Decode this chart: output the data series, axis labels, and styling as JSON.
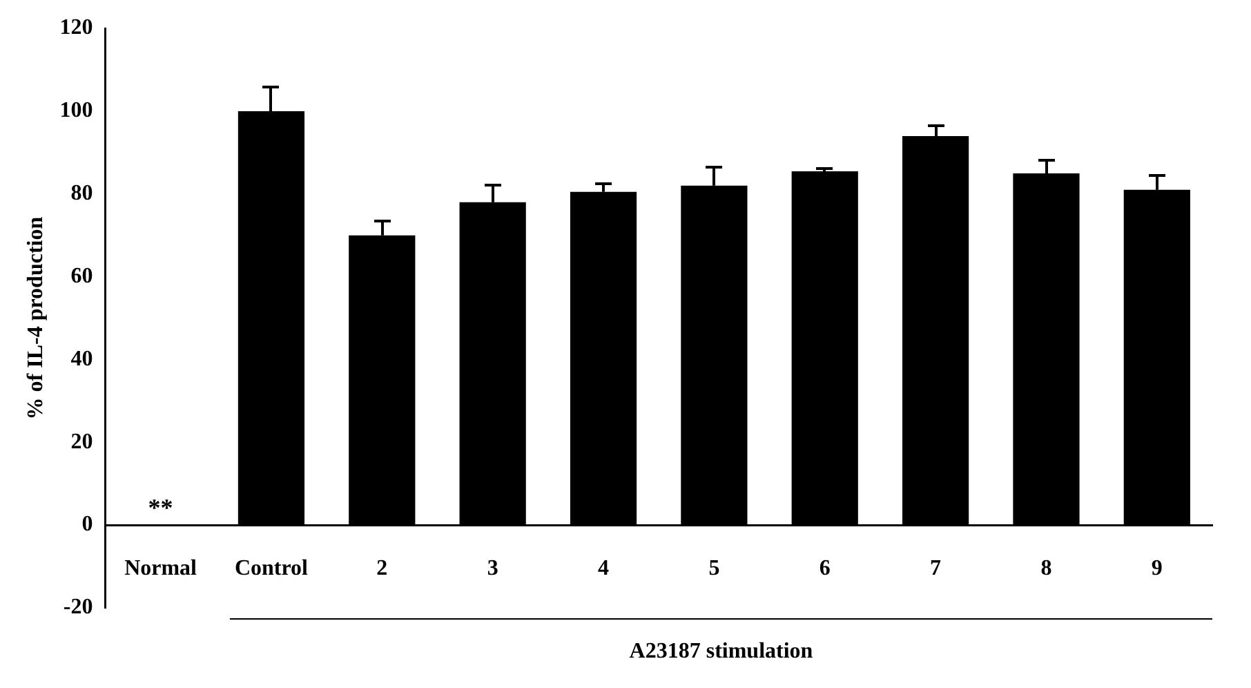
{
  "chart_data": {
    "type": "bar",
    "xlabel": "A23187 stimulation",
    "ylabel": "% of IL-4 production",
    "categories": [
      "Normal",
      "Control",
      "2",
      "3",
      "4",
      "5",
      "6",
      "7",
      "8",
      "9"
    ],
    "values": [
      0,
      100,
      70,
      78,
      80.5,
      82,
      85.5,
      94,
      85,
      81
    ],
    "errors": [
      null,
      [
        100,
        106
      ],
      [
        70,
        73.5
      ],
      [
        78,
        82
      ],
      [
        80.5,
        82.5
      ],
      [
        82,
        86.5
      ],
      [
        85.5,
        86
      ],
      [
        94,
        96.5
      ],
      [
        85,
        88
      ],
      [
        81,
        84.5
      ]
    ],
    "color": "#000000",
    "ylim": [
      -20,
      120
    ],
    "yticks": [
      -20,
      0,
      20,
      40,
      60,
      80,
      100,
      120
    ],
    "grid": false,
    "legend": false,
    "annotations": [
      {
        "text": "**",
        "x": "Normal",
        "y": 0
      }
    ]
  }
}
